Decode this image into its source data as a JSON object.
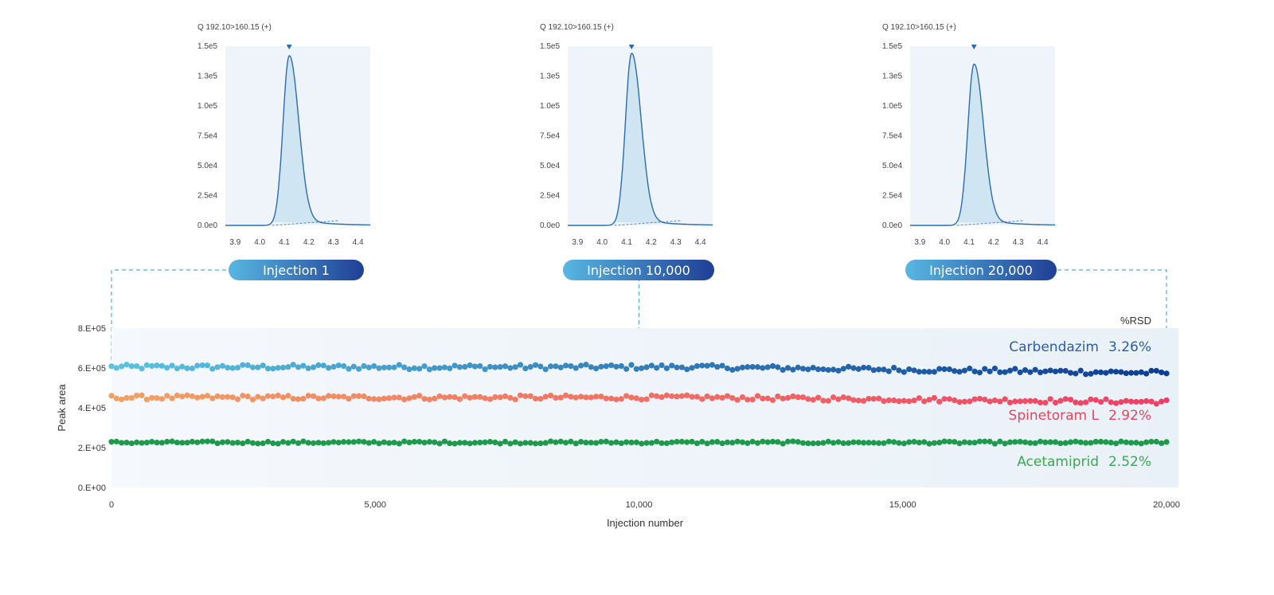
{
  "colors": {
    "carbendazim_start": "#5bc2e0",
    "carbendazim_end": "#0c3c94",
    "spinetoram_start": "#f4a062",
    "spinetoram_end": "#ef3f66",
    "acetamiprid": "#1e9a4c",
    "carbendazim_label": "#2a5ea8",
    "spinetoram_label": "#e8455e",
    "acetamiprid_label": "#3aa84f",
    "pill_left": "#58b7e2",
    "pill_right": "#1f3f95",
    "peak_line": "#2b6bb0",
    "peak_fill": "#cfe6f2",
    "panel_bg": "#eef4fa"
  },
  "chart_data": [
    {
      "type": "scatter",
      "xlabel": "Injection number",
      "ylabel": "Peak area",
      "xlim": [
        0,
        20000
      ],
      "ylim": [
        0,
        800000
      ],
      "x_ticks": [
        "0",
        "5,000",
        "10,000",
        "15,000",
        "20,000"
      ],
      "y_ticks": [
        "0.E+00",
        "2.E+05",
        "4.E+05",
        "6.E+05",
        "8.E+05"
      ],
      "rsd_header": "%RSD",
      "grid": false,
      "series": [
        {
          "name": "Carbendazim",
          "rsd": "3.26%",
          "color_key": "carbendazim",
          "mean": 605000,
          "amplitude": 12000,
          "trend_end": 575000,
          "x": [
            0,
            20000
          ]
        },
        {
          "name": "Spinetoram L",
          "rsd": "2.92%",
          "color_key": "spinetoram",
          "mean": 452000,
          "amplitude": 11000,
          "trend_end": 430000,
          "x": [
            0,
            20000
          ]
        },
        {
          "name": "Acetamiprid",
          "rsd": "2.52%",
          "color_key": "acetamiprid",
          "mean": 226000,
          "amplitude": 6000,
          "trend_end": 225000,
          "x": [
            0,
            20000
          ]
        }
      ]
    },
    {
      "type": "line",
      "panel": "Injection 1",
      "title": "Q 192.10>160.15 (+)",
      "x_ticks": [
        "3.9",
        "4.0",
        "4.1",
        "4.2",
        "4.3",
        "4.4"
      ],
      "y_ticks": [
        "0.0e0",
        "2.5e4",
        "5.0e4",
        "7.5e4",
        "1.0e5",
        "1.3e5",
        "1.5e5"
      ],
      "xlim": [
        3.86,
        4.45
      ],
      "ylim": [
        0,
        150000
      ],
      "peak_rt": 4.12,
      "peak_height": 142000
    },
    {
      "type": "line",
      "panel": "Injection 10,000",
      "title": "Q 192.10>160.15 (+)",
      "x_ticks": [
        "3.9",
        "4.0",
        "4.1",
        "4.2",
        "4.3",
        "4.4"
      ],
      "y_ticks": [
        "0.0e0",
        "2.5e4",
        "5.0e4",
        "7.5e4",
        "1.0e5",
        "1.3e5",
        "1.5e5"
      ],
      "xlim": [
        3.86,
        4.45
      ],
      "ylim": [
        0,
        150000
      ],
      "peak_rt": 4.12,
      "peak_height": 144000
    },
    {
      "type": "line",
      "panel": "Injection 20,000",
      "title": "Q 192.10>160.15 (+)",
      "x_ticks": [
        "3.9",
        "4.0",
        "4.1",
        "4.2",
        "4.3",
        "4.4"
      ],
      "y_ticks": [
        "0.0e0",
        "2.5e4",
        "5.0e4",
        "7.5e4",
        "1.0e5",
        "1.3e5",
        "1.5e5"
      ],
      "xlim": [
        3.86,
        4.45
      ],
      "ylim": [
        0,
        150000
      ],
      "peak_rt": 4.12,
      "peak_height": 135000
    }
  ],
  "injection_links": [
    1,
    10000,
    20000
  ]
}
